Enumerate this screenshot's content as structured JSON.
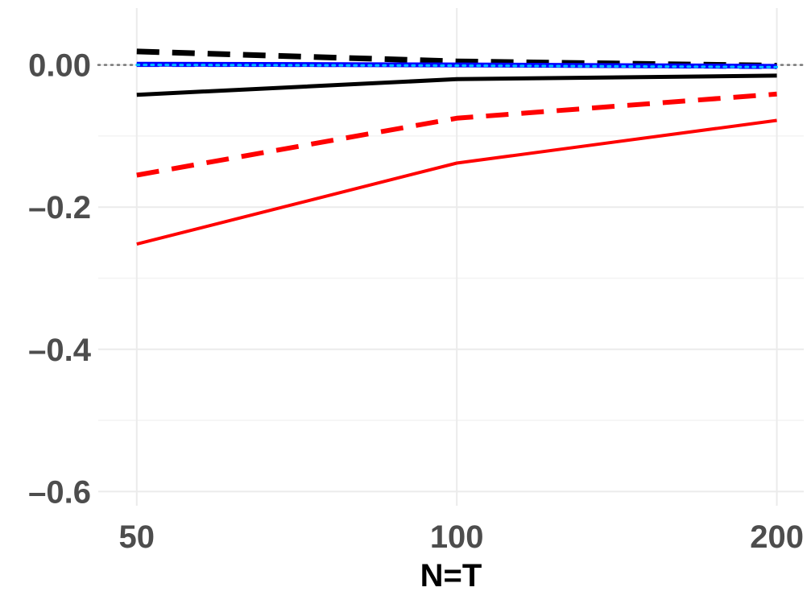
{
  "chart_data": {
    "type": "line",
    "title": "",
    "xlabel": "N=T",
    "ylabel": "",
    "x": [
      50,
      100,
      200
    ],
    "x_tick_labels": [
      "50",
      "100",
      "200"
    ],
    "x_scale": "log",
    "xlim": [
      46,
      212
    ],
    "y_ticks": [
      0.0,
      -0.2,
      -0.4,
      -0.6
    ],
    "y_tick_labels": [
      "0.00",
      "–0.2",
      "–0.4",
      "–0.6"
    ],
    "ylim": [
      -0.62,
      0.08
    ],
    "grid": true,
    "reference_line": {
      "y": 0,
      "color": "#777777",
      "style": "dotted"
    },
    "series": [
      {
        "values": [
          0.019,
          0.005,
          -0.001
        ],
        "color": "#000000",
        "style": "dashed",
        "width": 7
      },
      {
        "values": [
          -0.042,
          -0.02,
          -0.015
        ],
        "color": "#000000",
        "style": "solid",
        "width": 5
      },
      {
        "values": [
          -0.155,
          -0.075,
          -0.041
        ],
        "color": "#ff0000",
        "style": "dashed",
        "width": 6
      },
      {
        "values": [
          -0.252,
          -0.138,
          -0.078
        ],
        "color": "#ff0000",
        "style": "solid",
        "width": 4
      },
      {
        "values": [
          0.001,
          0.0,
          -0.002
        ],
        "color": "#0000ff",
        "style": "solid",
        "width": 6
      },
      {
        "values": [
          0.0,
          0.0,
          -0.003
        ],
        "color": "#0000ff",
        "style": "dashed",
        "width": 5
      },
      {
        "values": [
          0.0,
          -0.001,
          -0.003
        ],
        "color": "#00bfff",
        "style": "dotted",
        "width": 3
      }
    ]
  }
}
